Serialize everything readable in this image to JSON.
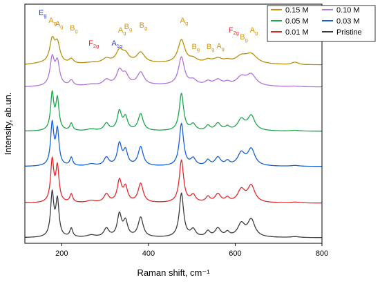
{
  "chart_data": {
    "type": "line",
    "xlabel": "Raman shift, cm⁻¹",
    "ylabel": "Intensity, ab.un.",
    "xlim": [
      115,
      800
    ],
    "xticks": [
      200,
      400,
      600,
      800
    ],
    "grid": false,
    "legend_position": "top-right",
    "colors": {
      "Ag": "#d4920c",
      "Bg": "#d4920c",
      "F2g": "#e8231f",
      "Eg": "#1f38d4",
      "A1g": "#1f38d4"
    },
    "series": [
      {
        "name": "0.15 M",
        "color": "#b8900c"
      },
      {
        "name": "0.10 M",
        "color": "#b074d8"
      },
      {
        "name": "0.05 M",
        "color": "#1aa84a"
      },
      {
        "name": "0.03 M",
        "color": "#1560d8"
      },
      {
        "name": "0.01 M",
        "color": "#e3282a"
      },
      {
        "name": "Pristine",
        "color": "#3c3c3c"
      }
    ],
    "peaks": [
      {
        "x": 178,
        "h": 1.0,
        "w": 4.5
      },
      {
        "x": 190,
        "h": 0.84,
        "w": 4.5
      },
      {
        "x": 222,
        "h": 0.2,
        "w": 4
      },
      {
        "x": 268,
        "h": 0.05,
        "w": 12
      },
      {
        "x": 303,
        "h": 0.2,
        "w": 7
      },
      {
        "x": 333,
        "h": 0.52,
        "w": 6
      },
      {
        "x": 347,
        "h": 0.35,
        "w": 6
      },
      {
        "x": 382,
        "h": 0.46,
        "w": 7
      },
      {
        "x": 476,
        "h": 1.02,
        "w": 6
      },
      {
        "x": 503,
        "h": 0.17,
        "w": 7
      },
      {
        "x": 537,
        "h": 0.13,
        "w": 6
      },
      {
        "x": 560,
        "h": 0.2,
        "w": 8
      },
      {
        "x": 582,
        "h": 0.1,
        "w": 6
      },
      {
        "x": 614,
        "h": 0.3,
        "w": 10
      },
      {
        "x": 637,
        "h": 0.4,
        "w": 10
      },
      {
        "x": 738,
        "h": 0.02,
        "w": 12
      }
    ],
    "annotations": [
      {
        "main": "E",
        "sub": "g",
        "x": 150,
        "color": "#1f38d4"
      },
      {
        "main": "A",
        "sub": "g",
        "x": 173,
        "color": "#d4920c"
      },
      {
        "main": "A",
        "sub": "g",
        "x": 188,
        "color": "#d4920c"
      },
      {
        "main": "B",
        "sub": "g",
        "x": 222,
        "color": "#d4920c"
      },
      {
        "main": "F",
        "sub": "2g",
        "x": 265,
        "color": "#e8231f"
      },
      {
        "main": "A",
        "sub": "1g",
        "x": 318,
        "color": "#1f38d4"
      },
      {
        "main": "A",
        "sub": "g",
        "x": 333,
        "color": "#d4920c"
      },
      {
        "main": "B",
        "sub": "g",
        "x": 347,
        "color": "#d4920c"
      },
      {
        "main": "B",
        "sub": "g",
        "x": 382,
        "color": "#d4920c"
      },
      {
        "main": "A",
        "sub": "g",
        "x": 476,
        "color": "#d4920c"
      },
      {
        "main": "B",
        "sub": "g",
        "x": 503,
        "color": "#d4920c"
      },
      {
        "main": "B",
        "sub": "g",
        "x": 537,
        "color": "#d4920c"
      },
      {
        "main": "A",
        "sub": "g",
        "x": 560,
        "color": "#d4920c"
      },
      {
        "main": "F",
        "sub": "2g",
        "x": 588,
        "color": "#e8231f"
      },
      {
        "main": "B",
        "sub": "g",
        "x": 614,
        "color": "#d4920c"
      },
      {
        "main": "A",
        "sub": "g",
        "x": 637,
        "color": "#d4920c"
      }
    ]
  }
}
